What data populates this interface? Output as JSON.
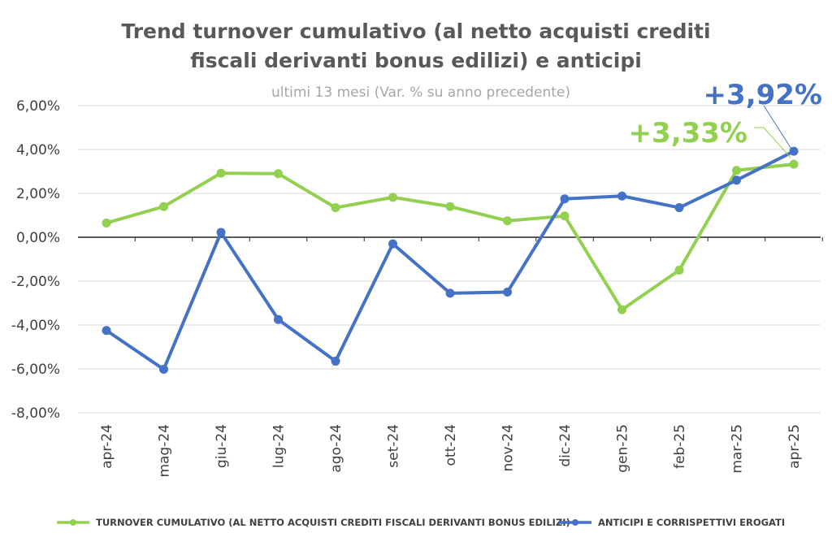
{
  "chart_data": {
    "type": "line",
    "title_line1": "Trend turnover cumulativo (al netto acquisti crediti",
    "title_line2": "fiscali derivanti bonus edilizi) e anticipi",
    "subtitle": "ultimi 13 mesi (Var. % su anno precedente)",
    "categories": [
      "apr-24",
      "mag-24",
      "giu-24",
      "lug-24",
      "ago-24",
      "set-24",
      "ott-24",
      "nov-24",
      "dic-24",
      "gen-25",
      "feb-25",
      "mar-25",
      "apr-25"
    ],
    "ylim": [
      -8,
      6
    ],
    "yticks": [
      6,
      4,
      2,
      0,
      -2,
      -4,
      -6,
      -8
    ],
    "ytick_labels": [
      "6,00%",
      "4,00%",
      "2,00%",
      "0,00%",
      "-2,00%",
      "-4,00%",
      "-6,00%",
      "-8,00%"
    ],
    "grid": true,
    "legend_position": "bottom",
    "series": [
      {
        "name": "TURNOVER CUMULATIVO (AL NETTO ACQUISTI CREDITI FISCALI DERIVANTI BONUS EDILIZI)",
        "color": "#92d050",
        "values": [
          0.65,
          1.4,
          2.92,
          2.9,
          1.35,
          1.82,
          1.4,
          0.75,
          0.97,
          -3.3,
          -1.5,
          3.05,
          3.33
        ]
      },
      {
        "name": "ANTICIPI E CORRISPETTIVI EROGATI",
        "color": "#4472c4",
        "values": [
          -4.25,
          -6.02,
          0.22,
          -3.75,
          -5.65,
          -0.3,
          -2.55,
          -2.5,
          1.75,
          1.88,
          1.35,
          2.6,
          3.92
        ]
      }
    ],
    "annotations": [
      {
        "text": "+3,92%",
        "color": "#4472c4"
      },
      {
        "text": "+3,33%",
        "color": "#92d050"
      }
    ]
  }
}
